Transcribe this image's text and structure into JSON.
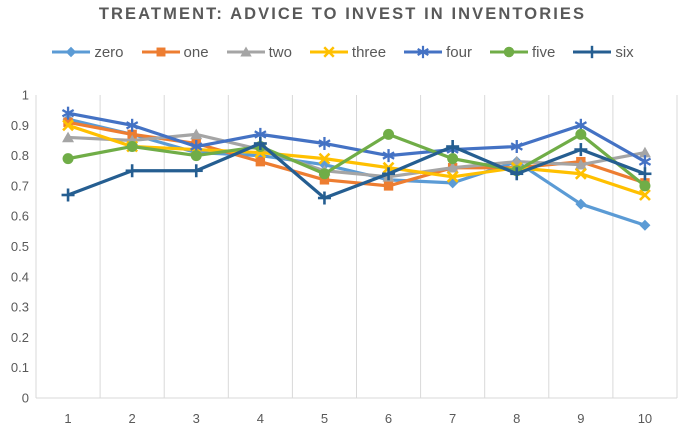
{
  "chart_data": {
    "type": "line",
    "title": "TREATMENT: ADVICE TO INVEST IN INVENTORIES",
    "x": [
      1,
      2,
      3,
      4,
      5,
      6,
      7,
      8,
      9,
      10
    ],
    "xlabel": "",
    "ylabel": "",
    "ylim": [
      0,
      1
    ],
    "ytick_labels": [
      "0",
      "0.1",
      "0.2",
      "0.3",
      "0.4",
      "0.5",
      "0.6",
      "0.7",
      "0.8",
      "0.9",
      "1"
    ],
    "grid": "vertical-only",
    "gridline_color": "#D9D9D9",
    "axis_text_color": "#595959",
    "legend_position": "top",
    "series": [
      {
        "name": "zero",
        "color": "#5B9BD5",
        "marker": "diamond",
        "values": [
          0.92,
          0.87,
          0.81,
          0.8,
          0.77,
          0.72,
          0.71,
          0.78,
          0.64,
          0.57
        ]
      },
      {
        "name": "one",
        "color": "#ED7D31",
        "marker": "square",
        "values": [
          0.91,
          0.87,
          0.84,
          0.78,
          0.72,
          0.7,
          0.76,
          0.76,
          0.78,
          0.71
        ]
      },
      {
        "name": "two",
        "color": "#A5A5A5",
        "marker": "triangle",
        "values": [
          0.86,
          0.85,
          0.87,
          0.82,
          0.75,
          0.73,
          0.76,
          0.78,
          0.77,
          0.81
        ]
      },
      {
        "name": "three",
        "color": "#FFC000",
        "marker": "x",
        "values": [
          0.9,
          0.83,
          0.82,
          0.81,
          0.79,
          0.76,
          0.73,
          0.76,
          0.74,
          0.67
        ]
      },
      {
        "name": "four",
        "color": "#4472C4",
        "marker": "asterisk",
        "values": [
          0.94,
          0.9,
          0.83,
          0.87,
          0.84,
          0.8,
          0.82,
          0.83,
          0.9,
          0.78
        ]
      },
      {
        "name": "five",
        "color": "#70AD47",
        "marker": "circle",
        "values": [
          0.79,
          0.83,
          0.8,
          0.83,
          0.74,
          0.87,
          0.79,
          0.75,
          0.87,
          0.7
        ]
      },
      {
        "name": "six",
        "color": "#255E91",
        "marker": "plus",
        "values": [
          0.67,
          0.75,
          0.75,
          0.84,
          0.66,
          0.74,
          0.83,
          0.74,
          0.82,
          0.74
        ]
      }
    ]
  }
}
